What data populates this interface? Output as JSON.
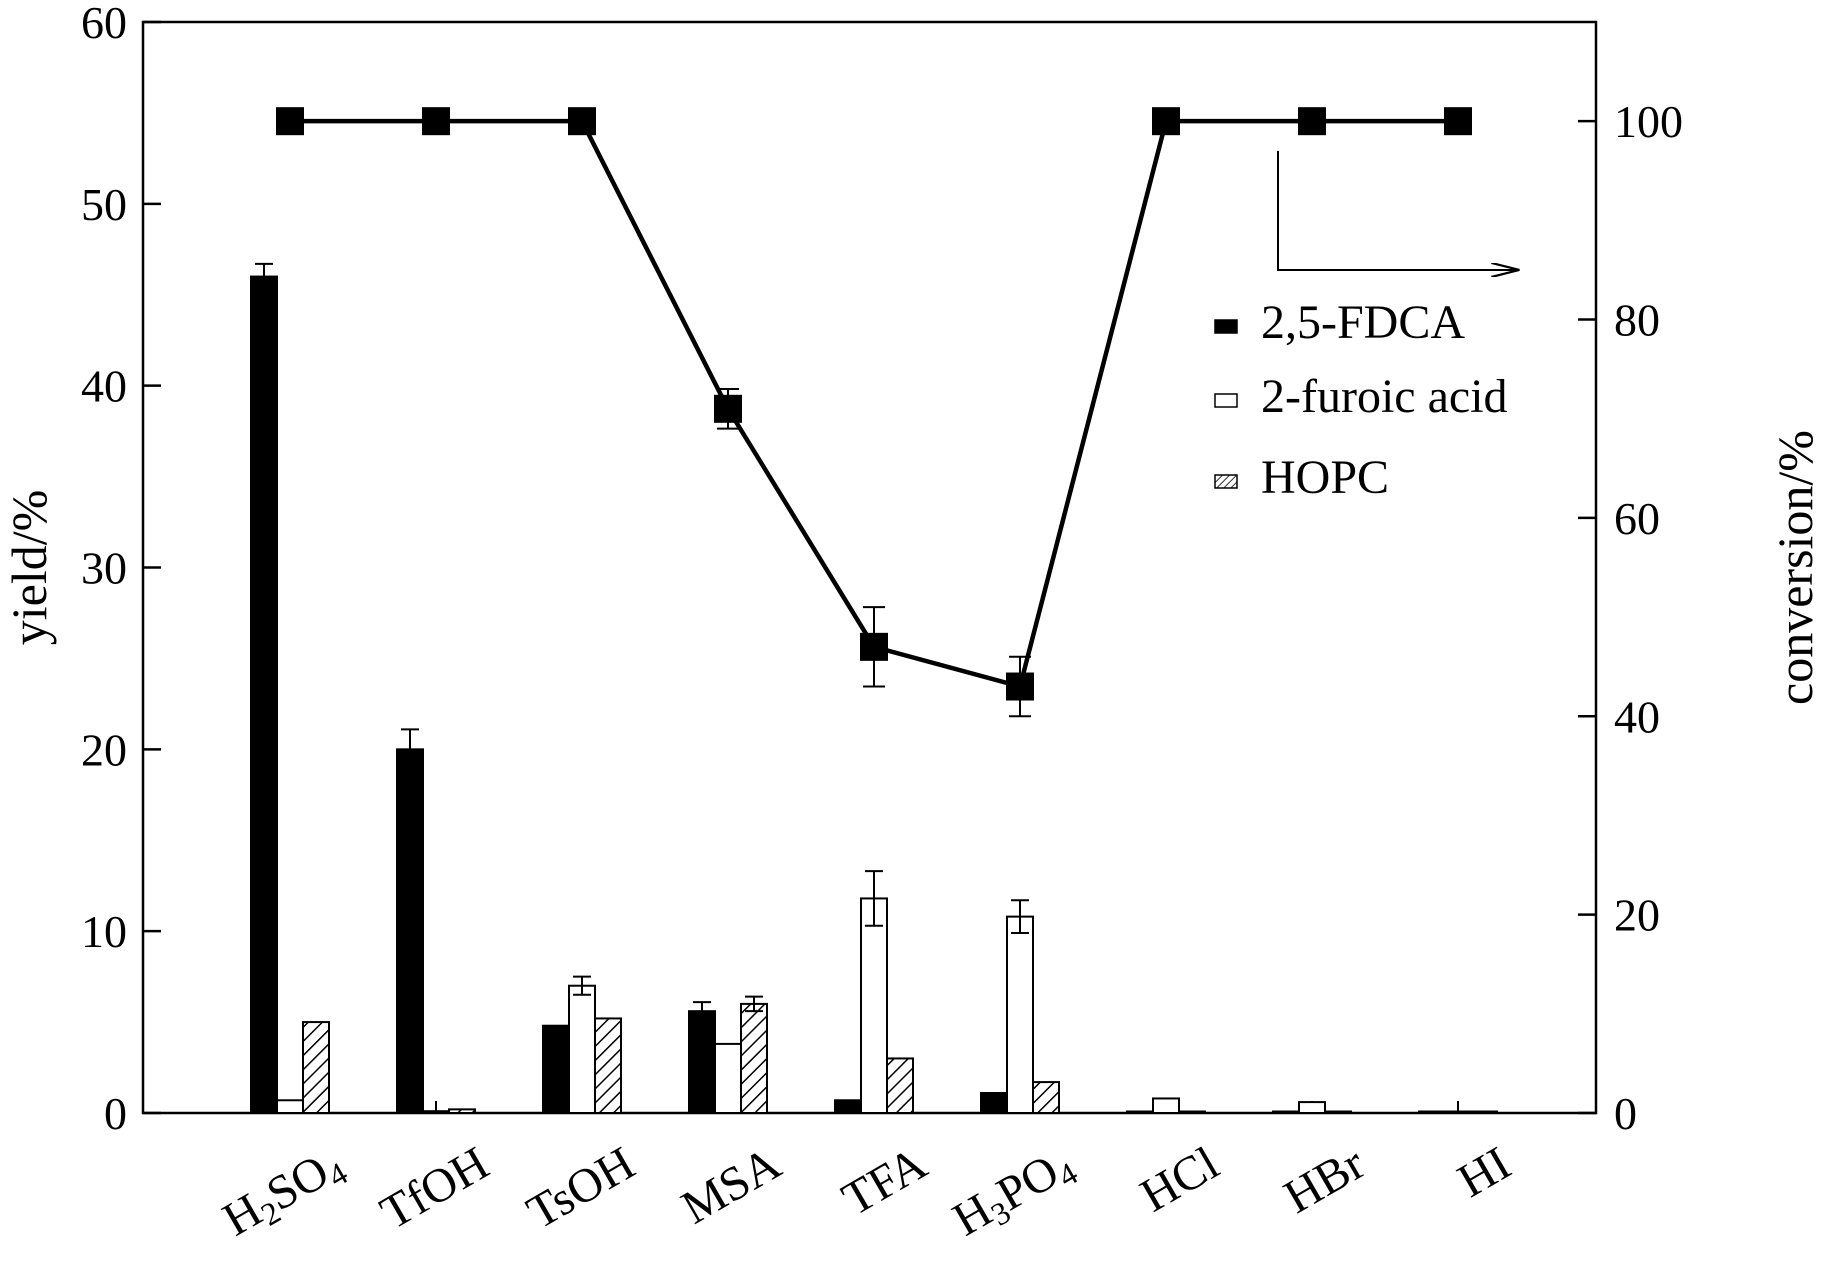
{
  "chart_data": {
    "type": "bar",
    "categories": [
      "H2SO4",
      "TfOH",
      "TsOH",
      "MSA",
      "TFA",
      "H3PO4",
      "HCl",
      "HBr",
      "HI"
    ],
    "category_display": [
      {
        "main": "H",
        "sub": "2",
        "rest": "SO",
        "sub2": "4"
      },
      {
        "main": "TfOH"
      },
      {
        "main": "TsOH"
      },
      {
        "main": "MSA"
      },
      {
        "main": "TFA"
      },
      {
        "main": "H",
        "sub": "3",
        "rest": "PO",
        "sub2": "4"
      },
      {
        "main": "HCl"
      },
      {
        "main": "HBr"
      },
      {
        "main": "HI"
      }
    ],
    "series": [
      {
        "name": "2,5-FDCA",
        "style": "solid",
        "values": [
          46.0,
          20.0,
          4.8,
          5.6,
          0.7,
          1.1,
          0,
          0,
          0
        ],
        "errors": [
          0.7,
          1.1,
          0,
          0.5,
          0,
          0,
          0,
          0,
          0
        ]
      },
      {
        "name": "2-furoic acid",
        "style": "open",
        "values": [
          0.7,
          0.1,
          7.0,
          3.8,
          11.8,
          10.8,
          0.8,
          0.6,
          0.05
        ],
        "errors": [
          0,
          0,
          0.5,
          0,
          1.5,
          0.9,
          0,
          0,
          0
        ]
      },
      {
        "name": "HOPC",
        "style": "hatched",
        "values": [
          5.0,
          0.2,
          5.2,
          6.0,
          3.0,
          1.7,
          0,
          0,
          0
        ],
        "errors": [
          0,
          0,
          0,
          0.4,
          0,
          0,
          0,
          0,
          0
        ]
      }
    ],
    "line_series": {
      "name": "conversion",
      "axis": "right",
      "values": [
        100,
        100,
        100,
        71,
        47,
        43,
        100,
        100,
        100
      ],
      "errors": [
        0,
        0,
        0,
        2,
        4,
        3,
        0,
        0,
        0
      ]
    },
    "ylabel": "yield/%",
    "ylabel_right": "conversion/%",
    "ylim": [
      0,
      60
    ],
    "ylim_right": [
      0,
      110
    ],
    "yticks": [
      0,
      10,
      20,
      30,
      40,
      50,
      60
    ],
    "yticks_right": [
      0,
      20,
      40,
      60,
      80,
      100
    ],
    "legend_position": "right"
  }
}
